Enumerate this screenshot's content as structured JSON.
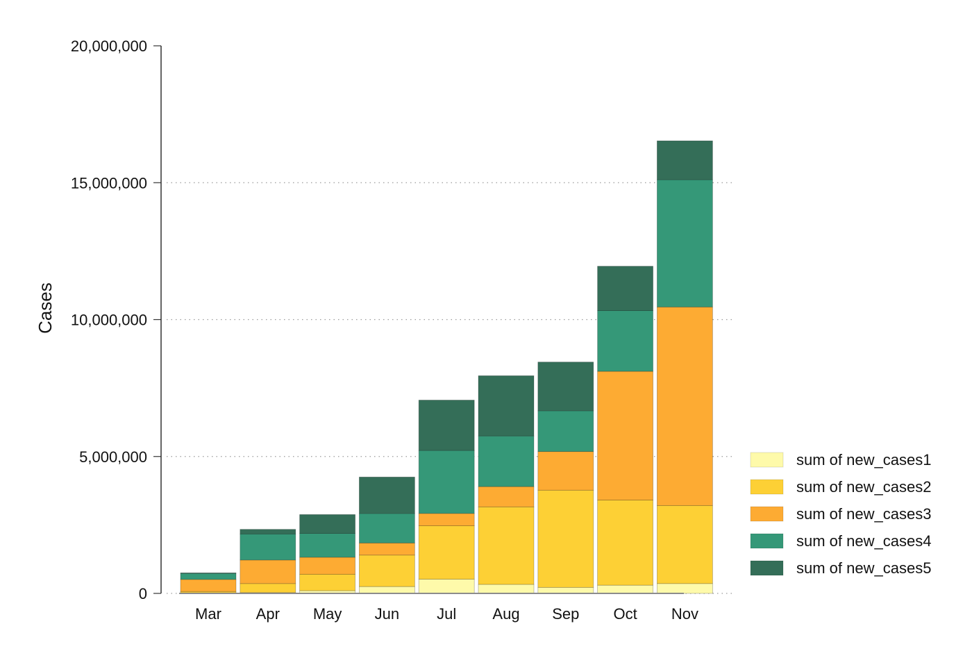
{
  "chart_data": {
    "type": "bar",
    "stacked": true,
    "title": "",
    "xlabel": "",
    "ylabel": "Cases",
    "ylim": [
      0,
      20000000
    ],
    "yticks": [
      0,
      5000000,
      10000000,
      15000000,
      20000000
    ],
    "ytick_labels": [
      "0",
      "5,000,000",
      "10,000,000",
      "15,000,000",
      "20,000,000"
    ],
    "grid": "horizontal dotted",
    "legend_position": "bottom-right",
    "categories": [
      "Mar",
      "Apr",
      "May",
      "Jun",
      "Jul",
      "Aug",
      "Sep",
      "Oct",
      "Nov"
    ],
    "series": [
      {
        "name": "sum of new_cases1",
        "color": "#fefaaa",
        "values": [
          20000,
          30000,
          100000,
          250000,
          520000,
          330000,
          220000,
          300000,
          360000
        ]
      },
      {
        "name": "sum of new_cases2",
        "color": "#fdd035",
        "values": [
          50000,
          330000,
          600000,
          1150000,
          1950000,
          2830000,
          3550000,
          3110000,
          2850000
        ]
      },
      {
        "name": "sum of new_cases3",
        "color": "#fdab33",
        "values": [
          440000,
          860000,
          620000,
          440000,
          450000,
          740000,
          1410000,
          4700000,
          7250000
        ]
      },
      {
        "name": "sum of new_cases4",
        "color": "#359878",
        "values": [
          220000,
          950000,
          870000,
          1080000,
          2300000,
          1850000,
          1490000,
          2220000,
          4650000
        ]
      },
      {
        "name": "sum of new_cases5",
        "color": "#346e58",
        "values": [
          20000,
          170000,
          690000,
          1330000,
          1840000,
          2200000,
          1780000,
          1620000,
          1420000
        ]
      }
    ]
  }
}
